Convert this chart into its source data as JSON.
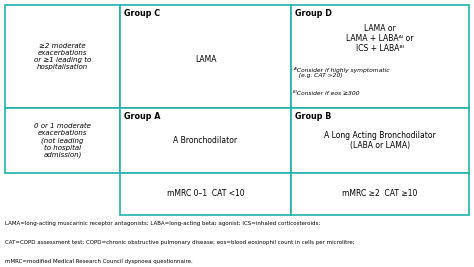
{
  "bg_color": "#ffffff",
  "border_color": "#20B2AA",
  "left_col_text_top": "≥2 moderate\nexacerbations\nor ≥1 leading to\nhospitalisation",
  "left_col_text_bottom": "0 or 1 moderate\nexacerbations\n(not leading\nto hospital\nadmission)",
  "group_c_title": "Group C",
  "group_c_body": "LAMA",
  "group_d_title": "Group D",
  "group_d_body": "LAMA or\nLAMA + LABAᴬᴵ or\nICS + LABAᴮᴵ",
  "group_d_footnote_a": "ᴬᴵConsider if highly symptomatic\n   (e.g. CAT >20)",
  "group_d_footnote_b": "ᴮᴵConsider if eos ≥300",
  "group_a_title": "Group A",
  "group_a_body": "A Bronchodilator",
  "group_b_title": "Group B",
  "group_b_body": "A Long Acting Bronchodilator\n(LABA or LAMA)",
  "bottom_left_label": "mMRC 0–1  CAT <10",
  "bottom_right_label": "mMRC ≥2  CAT ≥10",
  "footnote_line1": "LAMA=long-acting muscarinic receptor antagonists; LABA=long-acting beta₂ agonist; ICS=inhaled corticosteroids;",
  "footnote_line2": "CAT=COPD assessment test; COPD=chronic obstructive pulmonary disease; eos=blood eosinophil count in cells per microlitre;",
  "footnote_line3": "mMRC=modified Medical Research Council dyspnoea questionnaire."
}
